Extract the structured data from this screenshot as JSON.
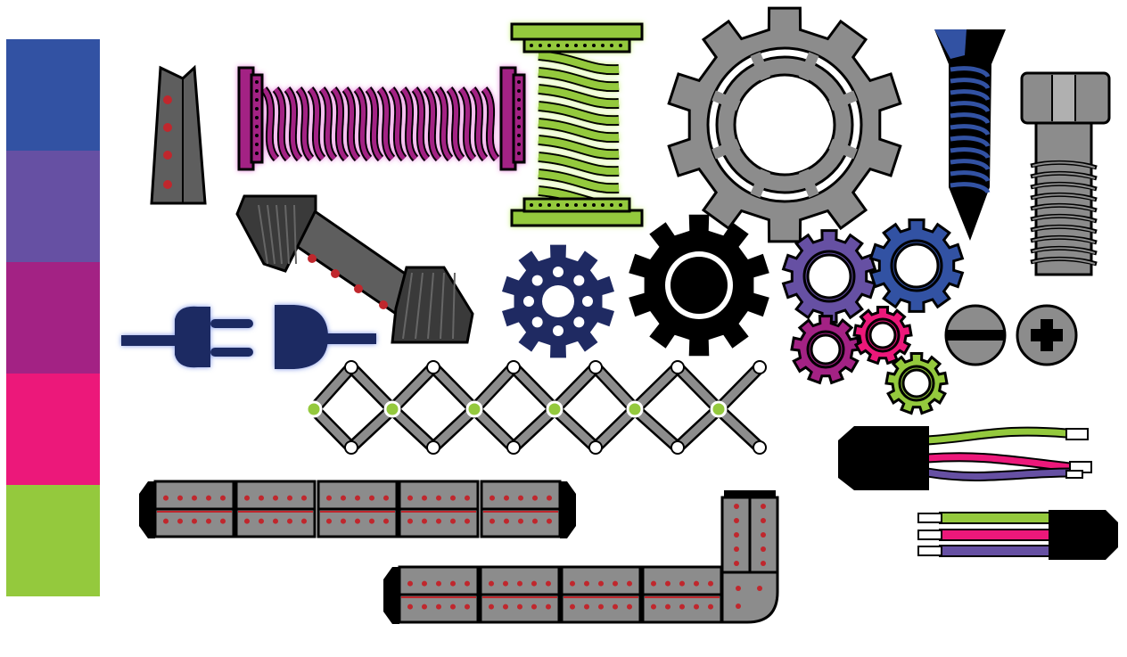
{
  "palette": {
    "swatches": [
      {
        "name": "blue",
        "color": "#3252A3"
      },
      {
        "name": "violet",
        "color": "#6650A3"
      },
      {
        "name": "magenta",
        "color": "#A32284"
      },
      {
        "name": "pink",
        "color": "#EC187A"
      },
      {
        "name": "lime",
        "color": "#94C93D"
      }
    ]
  },
  "colors": {
    "outline": "#000000",
    "metal": "#8C8C8C",
    "dark_metal": "#5E5E5E",
    "rivet": "#C0272D",
    "navy": "#1F2A62",
    "white": "#FFFFFF"
  },
  "objects": [
    {
      "name": "wedge-bracket-icon"
    },
    {
      "name": "magenta-spring-icon"
    },
    {
      "name": "green-spring-icon"
    },
    {
      "name": "large-gray-gear-icon"
    },
    {
      "name": "blue-screw-icon"
    },
    {
      "name": "hex-bolt-icon"
    },
    {
      "name": "bellows-joint-icon"
    },
    {
      "name": "power-plug-icon"
    },
    {
      "name": "navy-gear-icon"
    },
    {
      "name": "black-gear-icon"
    },
    {
      "name": "small-gears-cluster-icon"
    },
    {
      "name": "slotted-screw-head-icon"
    },
    {
      "name": "phillips-screw-head-icon"
    },
    {
      "name": "scissor-linkage-icon"
    },
    {
      "name": "wire-cable-icon"
    },
    {
      "name": "straight-track-segment-icon"
    },
    {
      "name": "elbow-track-segment-icon"
    }
  ]
}
